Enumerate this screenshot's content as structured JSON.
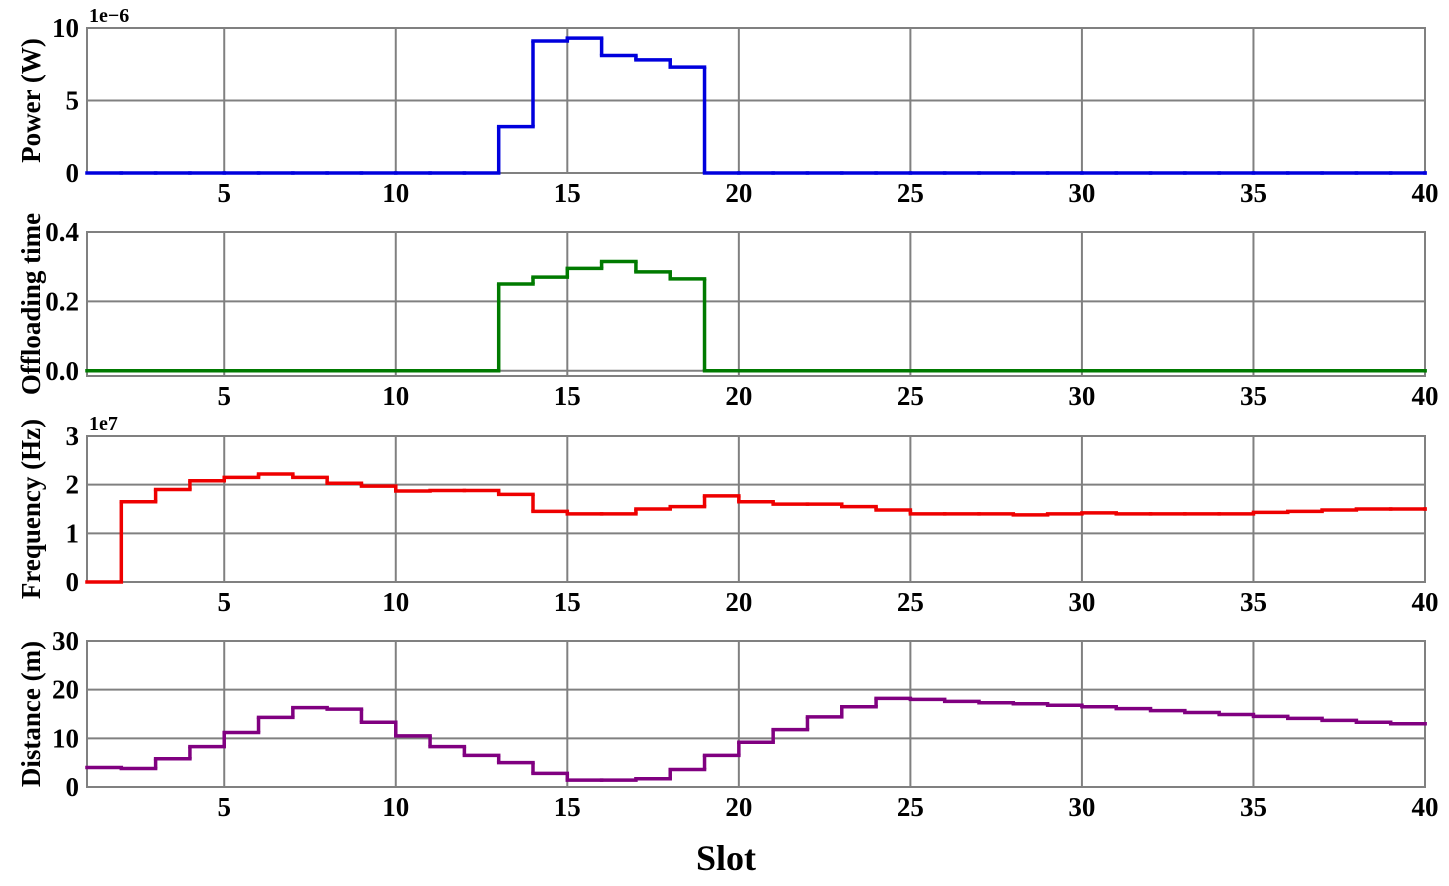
{
  "chart_data": [
    {
      "type": "step",
      "ylabel": "Power (W)",
      "offset_label": "1e−6",
      "color": "#0000dd",
      "x": [
        1,
        2,
        3,
        4,
        5,
        6,
        7,
        8,
        9,
        10,
        11,
        12,
        13,
        14,
        15,
        16,
        17,
        18,
        19,
        20,
        21,
        22,
        23,
        24,
        25,
        26,
        27,
        28,
        29,
        30,
        31,
        32,
        33,
        34,
        35,
        36,
        37,
        38,
        39,
        40
      ],
      "values": [
        0,
        0,
        0,
        0,
        0,
        0,
        0,
        0,
        0,
        0,
        0,
        0,
        3.2,
        9.1,
        9.3,
        8.1,
        7.8,
        7.3,
        0,
        0,
        0,
        0,
        0,
        0,
        0,
        0,
        0,
        0,
        0,
        0,
        0,
        0,
        0,
        0,
        0,
        0,
        0,
        0,
        0,
        0
      ],
      "xlim": [
        1,
        40
      ],
      "xticks": [
        5,
        10,
        15,
        20,
        25,
        30,
        35,
        40
      ],
      "ylim": [
        0,
        10
      ],
      "yticks": [
        0,
        5,
        10
      ],
      "grid": true
    },
    {
      "type": "step",
      "ylabel": "Offloading time",
      "color": "#007a00",
      "x": [
        1,
        2,
        3,
        4,
        5,
        6,
        7,
        8,
        9,
        10,
        11,
        12,
        13,
        14,
        15,
        16,
        17,
        18,
        19,
        20,
        21,
        22,
        23,
        24,
        25,
        26,
        27,
        28,
        29,
        30,
        31,
        32,
        33,
        34,
        35,
        36,
        37,
        38,
        39,
        40
      ],
      "values": [
        0,
        0,
        0,
        0,
        0,
        0,
        0,
        0,
        0,
        0,
        0,
        0,
        0.25,
        0.27,
        0.295,
        0.315,
        0.285,
        0.265,
        0,
        0,
        0,
        0,
        0,
        0,
        0,
        0,
        0,
        0,
        0,
        0,
        0,
        0,
        0,
        0,
        0,
        0,
        0,
        0,
        0,
        0
      ],
      "xlim": [
        1,
        40
      ],
      "xticks": [
        5,
        10,
        15,
        20,
        25,
        30,
        35,
        40
      ],
      "ylim": [
        -0.015,
        0.4
      ],
      "yticks": [
        {
          "value": 0,
          "label": "0.0"
        },
        {
          "value": 0.2,
          "label": "0.2"
        },
        {
          "value": 0.4,
          "label": "0.4"
        }
      ],
      "grid": true
    },
    {
      "type": "step",
      "ylabel": "Frequency (Hz)",
      "offset_label": "1e7",
      "color": "#ee0000",
      "x": [
        1,
        2,
        3,
        4,
        5,
        6,
        7,
        8,
        9,
        10,
        11,
        12,
        13,
        14,
        15,
        16,
        17,
        18,
        19,
        20,
        21,
        22,
        23,
        24,
        25,
        26,
        27,
        28,
        29,
        30,
        31,
        32,
        33,
        34,
        35,
        36,
        37,
        38,
        39,
        40
      ],
      "values": [
        0,
        1.65,
        1.9,
        2.08,
        2.15,
        2.22,
        2.15,
        2.03,
        1.97,
        1.87,
        1.88,
        1.88,
        1.8,
        1.45,
        1.4,
        1.4,
        1.5,
        1.55,
        1.77,
        1.65,
        1.6,
        1.6,
        1.55,
        1.48,
        1.4,
        1.4,
        1.4,
        1.38,
        1.4,
        1.42,
        1.4,
        1.4,
        1.4,
        1.4,
        1.43,
        1.45,
        1.48,
        1.5,
        1.5,
        1.5
      ],
      "xlim": [
        1,
        40
      ],
      "xticks": [
        5,
        10,
        15,
        20,
        25,
        30,
        35,
        40
      ],
      "ylim": [
        0,
        3
      ],
      "yticks": [
        0,
        1,
        2,
        3
      ],
      "grid": true
    },
    {
      "type": "step",
      "ylabel": "Distance (m)",
      "xlabel": "Slot",
      "color": "#800080",
      "x": [
        1,
        2,
        3,
        4,
        5,
        6,
        7,
        8,
        9,
        10,
        11,
        12,
        13,
        14,
        15,
        16,
        17,
        18,
        19,
        20,
        21,
        22,
        23,
        24,
        25,
        26,
        27,
        28,
        29,
        30,
        31,
        32,
        33,
        34,
        35,
        36,
        37,
        38,
        39,
        40
      ],
      "values": [
        4.0,
        3.8,
        5.8,
        8.3,
        11.2,
        14.3,
        16.3,
        16.0,
        13.3,
        10.5,
        8.3,
        6.5,
        5.0,
        2.8,
        1.4,
        1.4,
        1.7,
        3.6,
        6.5,
        9.2,
        11.8,
        14.4,
        16.5,
        18.2,
        18.0,
        17.6,
        17.3,
        17.1,
        16.8,
        16.5,
        16.1,
        15.7,
        15.3,
        14.9,
        14.5,
        14.1,
        13.7,
        13.3,
        13.0,
        13.0
      ],
      "xlim": [
        1,
        40
      ],
      "xticks": [
        5,
        10,
        15,
        20,
        25,
        30,
        35,
        40
      ],
      "ylim": [
        0,
        30
      ],
      "yticks": [
        0,
        10,
        20,
        30
      ],
      "grid": true
    }
  ]
}
